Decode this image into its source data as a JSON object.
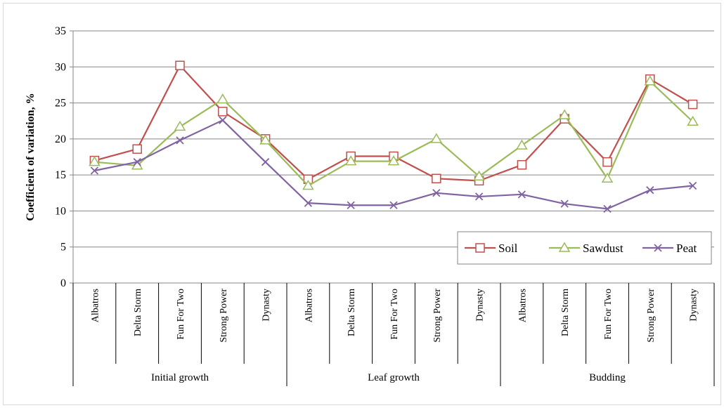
{
  "chart_data": {
    "type": "line",
    "ylabel": "Coefficient of variation, %",
    "ylim": [
      0,
      35
    ],
    "yticks": [
      0,
      5,
      10,
      15,
      20,
      25,
      30,
      35
    ],
    "grid": true,
    "legend_position": "bottom-right",
    "categories": [
      "Albatros",
      "Delta Storm",
      "Fun For Two",
      "Strong Power",
      "Dynasty",
      "Albatros",
      "Delta Storm",
      "Fun For Two",
      "Strong Power",
      "Dynasty",
      "Albatros",
      "Delta Storm",
      "Fun For Two",
      "Strong Power",
      "Dynasty"
    ],
    "groups": [
      {
        "label": "Initial growth",
        "count": 5
      },
      {
        "label": "Leaf growth",
        "count": 5
      },
      {
        "label": "Budding",
        "count": 5
      }
    ],
    "series": [
      {
        "name": "Soil",
        "color": "#c0504d",
        "marker": "square",
        "values": [
          17.0,
          18.6,
          30.2,
          23.8,
          20.0,
          14.4,
          17.6,
          17.6,
          14.5,
          14.2,
          16.4,
          22.8,
          16.8,
          28.3,
          24.8
        ]
      },
      {
        "name": "Sawdust",
        "color": "#9bbb59",
        "marker": "triangle",
        "values": [
          16.8,
          16.3,
          21.7,
          25.5,
          19.8,
          13.5,
          16.9,
          16.9,
          20.0,
          14.8,
          19.1,
          23.3,
          14.5,
          28.0,
          22.4
        ]
      },
      {
        "name": "Peat",
        "color": "#8064a2",
        "marker": "x",
        "values": [
          15.6,
          16.8,
          19.8,
          22.6,
          16.8,
          11.1,
          10.8,
          10.8,
          12.5,
          12.0,
          12.3,
          11.0,
          10.3,
          12.9,
          13.5
        ]
      }
    ]
  }
}
